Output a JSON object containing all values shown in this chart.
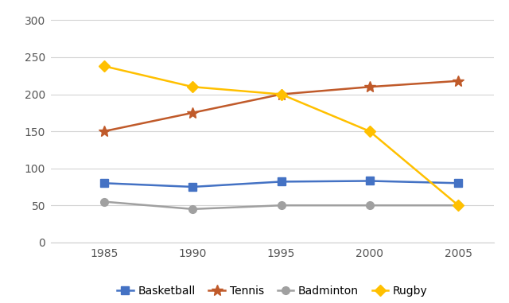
{
  "years": [
    1985,
    1990,
    1995,
    2000,
    2005
  ],
  "series": {
    "Basketball": {
      "values": [
        80,
        75,
        82,
        83,
        80
      ],
      "color": "#4472C4",
      "marker": "s",
      "markersize": 7,
      "linewidth": 1.8
    },
    "Tennis": {
      "values": [
        150,
        175,
        200,
        210,
        218
      ],
      "color": "#C05A2A",
      "marker": "*",
      "markersize": 10,
      "linewidth": 1.8
    },
    "Badminton": {
      "values": [
        55,
        45,
        50,
        50,
        50
      ],
      "color": "#A0A0A0",
      "marker": "o",
      "markersize": 7,
      "linewidth": 1.8
    },
    "Rugby": {
      "values": [
        238,
        210,
        200,
        150,
        50
      ],
      "color": "#FFC000",
      "marker": "D",
      "markersize": 7,
      "linewidth": 1.8
    }
  },
  "ylim": [
    0,
    315
  ],
  "yticks": [
    0,
    50,
    100,
    150,
    200,
    250,
    300
  ],
  "xlim": [
    1982,
    2007
  ],
  "xticks": [
    1985,
    1990,
    1995,
    2000,
    2005
  ],
  "background_color": "#FFFFFF",
  "grid_color": "#D3D3D3",
  "legend_order": [
    "Basketball",
    "Tennis",
    "Badminton",
    "Rugby"
  ]
}
